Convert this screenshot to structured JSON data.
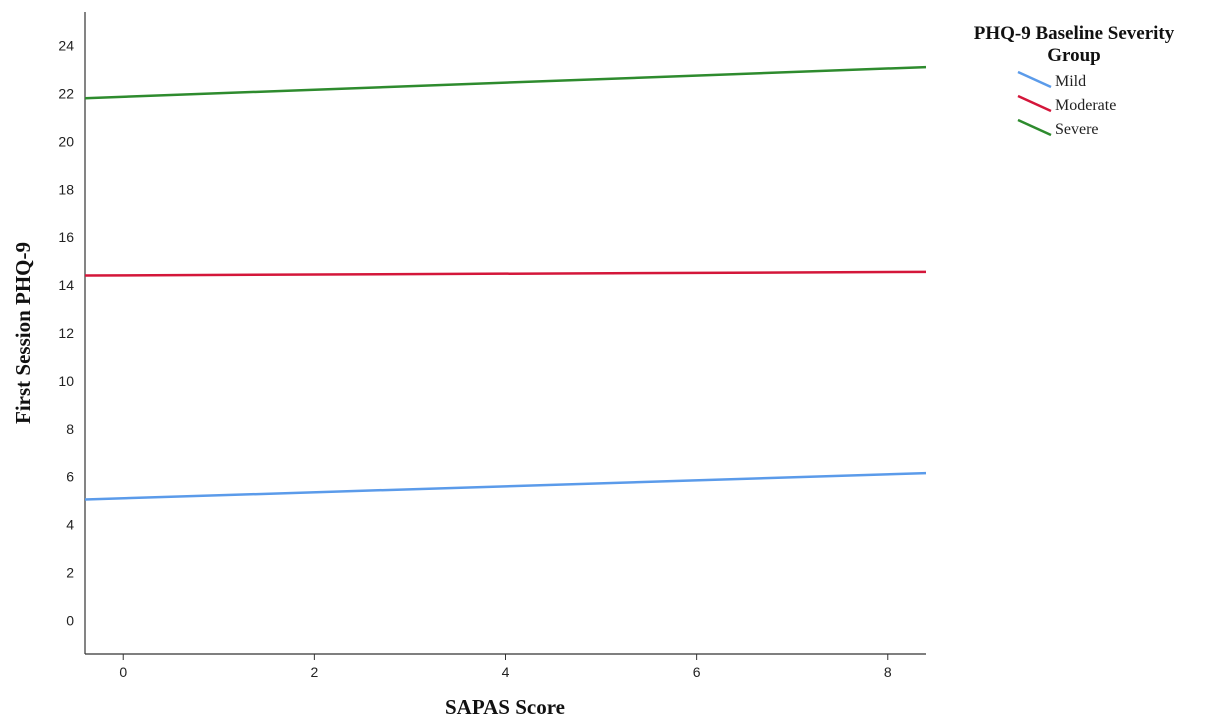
{
  "chart_data": {
    "type": "line",
    "title": "",
    "xlabel": "SAPAS Score",
    "ylabel": "First Session PHQ-9",
    "x_ticks": [
      "0",
      "2",
      "4",
      "6",
      "8"
    ],
    "y_ticks": [
      "0",
      "2",
      "4",
      "6",
      "8",
      "10",
      "12",
      "14",
      "16",
      "18",
      "20",
      "22",
      "24"
    ],
    "xlim": [
      -0.4,
      8.4
    ],
    "ylim": [
      -1.4,
      25.4
    ],
    "grid": false,
    "legend": {
      "title_lines": [
        "PHQ-9 Baseline Severity",
        "Group"
      ],
      "placement": "right-top"
    },
    "series": [
      {
        "name": "Mild",
        "color": "#5b9bea",
        "x": [
          -0.4,
          8.4
        ],
        "y": [
          5.05,
          6.15
        ]
      },
      {
        "name": "Moderate",
        "color": "#d4163a",
        "x": [
          -0.4,
          8.4
        ],
        "y": [
          14.4,
          14.55
        ]
      },
      {
        "name": "Severe",
        "color": "#2e8b2e",
        "x": [
          -0.4,
          8.4
        ],
        "y": [
          21.8,
          23.1
        ]
      }
    ]
  }
}
